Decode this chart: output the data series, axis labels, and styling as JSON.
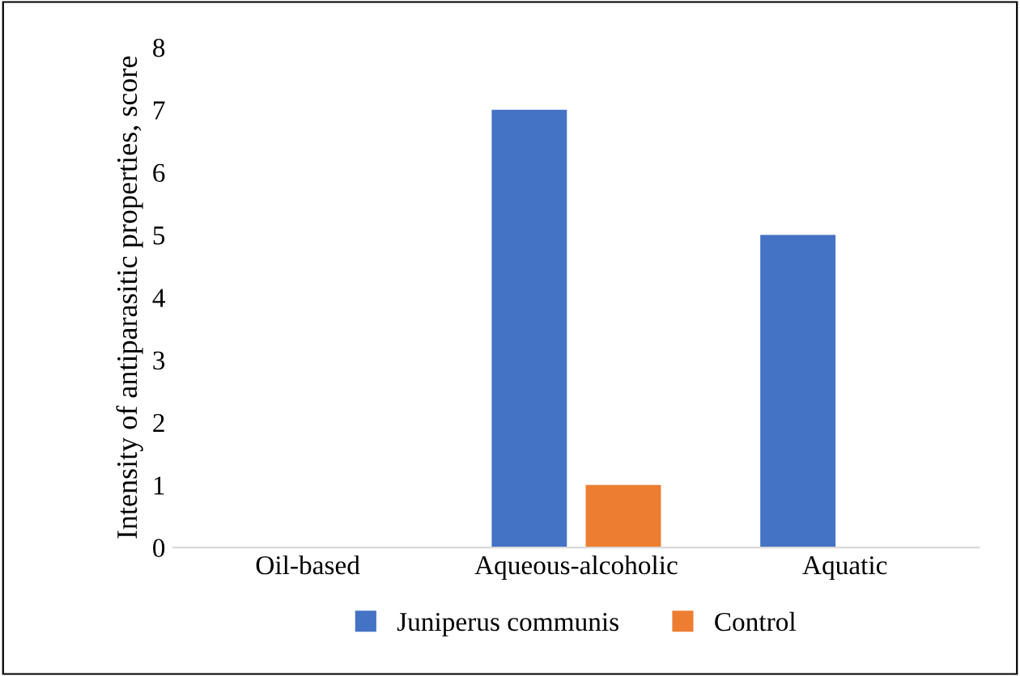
{
  "chart_data": {
    "type": "bar",
    "ylabel": "Intensity of antiparasitic properties, score",
    "categories": [
      "Oil-based",
      "Aqueous-alcoholic",
      "Aquatic"
    ],
    "series": [
      {
        "name": "Juniperus communis",
        "color": "#4472c4",
        "values": [
          0,
          7,
          5
        ]
      },
      {
        "name": "Control",
        "color": "#ed7d31",
        "values": [
          0,
          1,
          0
        ]
      }
    ],
    "ylim": [
      0,
      8
    ],
    "yticks": [
      0,
      1,
      2,
      3,
      4,
      5,
      6,
      7,
      8
    ],
    "grid": false,
    "legend": "bottom"
  }
}
